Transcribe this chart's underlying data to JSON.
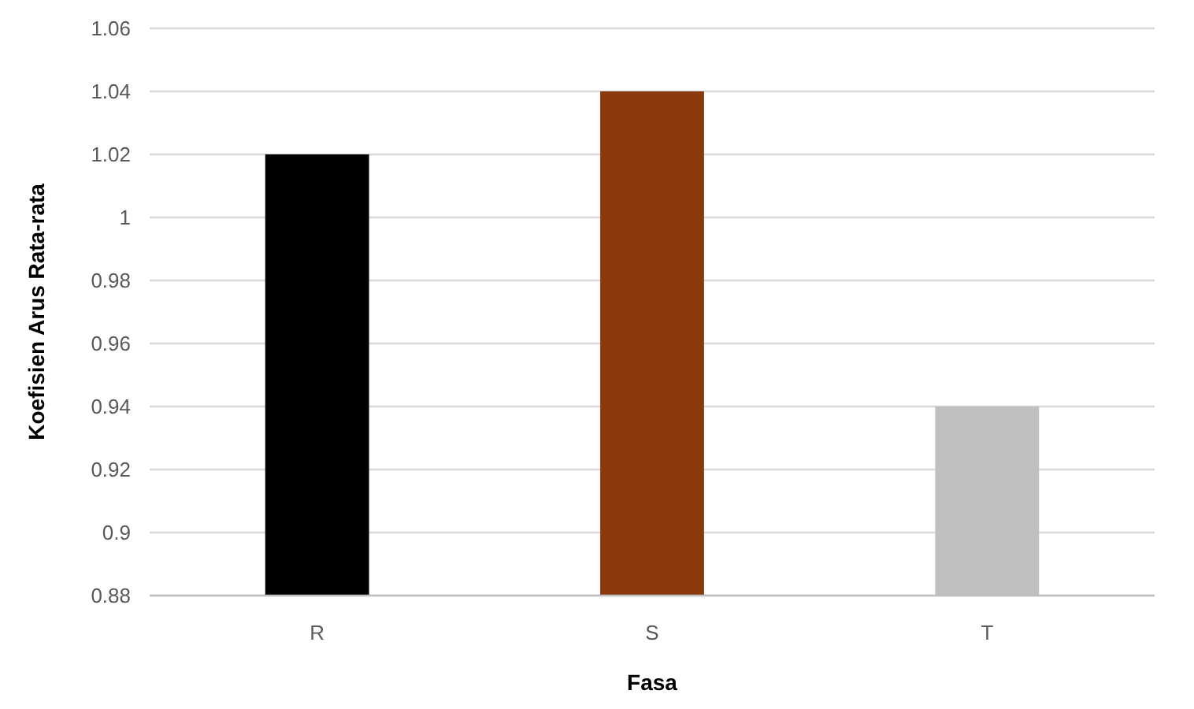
{
  "chart_data": {
    "type": "bar",
    "xlabel": "Fasa",
    "ylabel": "Koefisien Arus Rata-rata",
    "categories": [
      "R",
      "S",
      "T"
    ],
    "values": [
      1.02,
      1.04,
      0.94
    ],
    "colors": [
      "#000000",
      "#8b3a0e",
      "#c0c0c0"
    ],
    "ylim": [
      0.88,
      1.06
    ],
    "yticks": [
      0.88,
      0.9,
      0.92,
      0.94,
      0.96,
      0.98,
      1,
      1.02,
      1.04,
      1.06
    ],
    "grid": "y"
  }
}
